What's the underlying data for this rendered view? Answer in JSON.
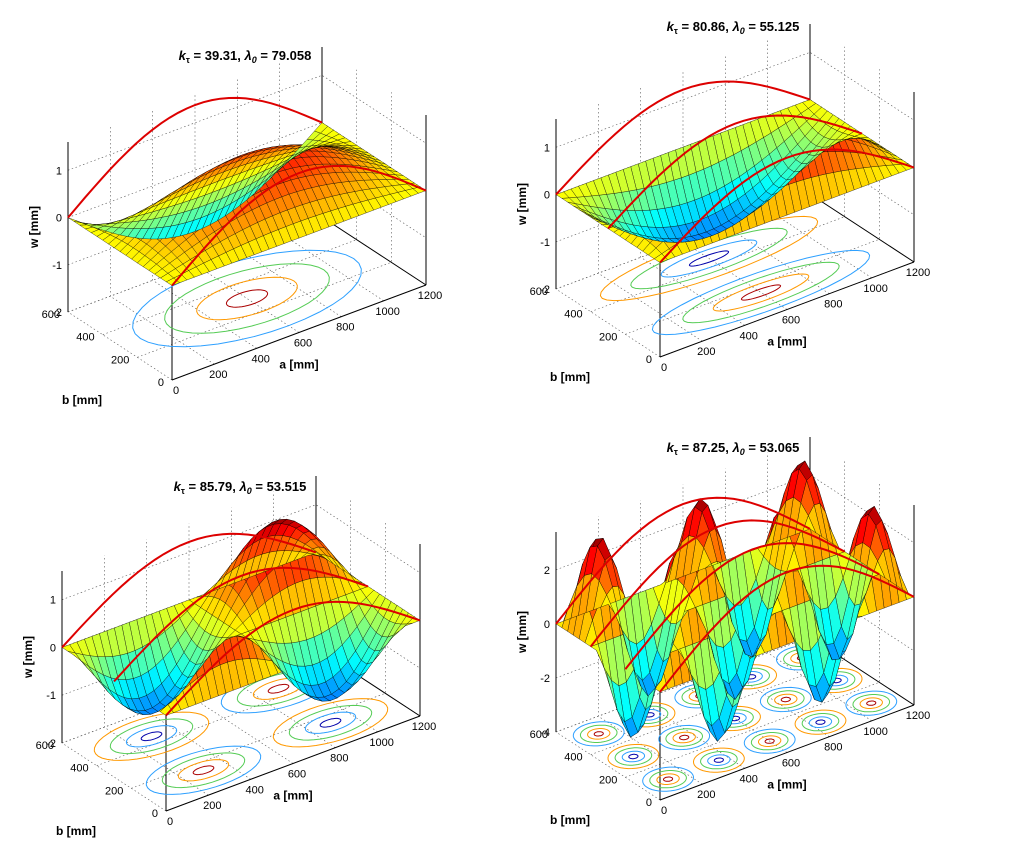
{
  "chart_data": [
    {
      "type": "surface3d",
      "title": "kτ = 39.31, λ0 = 79.058",
      "title_parts": {
        "k": "k",
        "k_sub": "τ",
        "k_value": " = 39.31, ",
        "lambda": "λ",
        "lambda_sub": "0",
        "lambda_value": " = 79.058"
      },
      "xlabel": "a [mm]",
      "ylabel": "b [mm]",
      "zlabel": "w [mm]",
      "xlim": [
        0,
        1200
      ],
      "ylim": [
        0,
        600
      ],
      "zlim": [
        -2,
        1.6
      ],
      "xticks": [
        "0",
        "200",
        "400",
        "600",
        "800",
        "1000",
        "1200"
      ],
      "yticks": [
        "0",
        "200",
        "400",
        "600"
      ],
      "zticks": [
        "-2",
        "-1",
        "0",
        "1"
      ],
      "grid": true,
      "mode": {
        "m": 1,
        "n": 1,
        "amplitude": 1.7,
        "tilt": -0.9
      },
      "colormap": "jet",
      "contour_colors": [
        "#0000aa",
        "#2ea0ff",
        "#55cc55",
        "#ff9900",
        "#aa0000"
      ]
    },
    {
      "type": "surface3d",
      "title": "kτ = 80.86, λ0 = 55.125",
      "title_parts": {
        "k": "k",
        "k_sub": "τ",
        "k_value": " = 80.86, ",
        "lambda": "λ",
        "lambda_sub": "0",
        "lambda_value": " = 55.125"
      },
      "xlabel": "a [mm]",
      "ylabel": "b [mm]",
      "zlabel": "w [mm]",
      "xlim": [
        0,
        1200
      ],
      "ylim": [
        0,
        600
      ],
      "zlim": [
        -2,
        1.6
      ],
      "xticks": [
        "0",
        "200",
        "400",
        "600",
        "800",
        "1000",
        "1200"
      ],
      "yticks": [
        "0",
        "200",
        "400",
        "600"
      ],
      "zticks": [
        "-2",
        "-1",
        "0",
        "1"
      ],
      "grid": true,
      "mode": {
        "m": 1,
        "n": 2,
        "amplitude": 1.5,
        "tilt": 0
      },
      "colormap": "jet",
      "contour_colors": [
        "#0000aa",
        "#2ea0ff",
        "#55cc55",
        "#ff9900",
        "#aa0000"
      ]
    },
    {
      "type": "surface3d",
      "title": "kτ = 85.79, λ0 = 53.515",
      "title_parts": {
        "k": "k",
        "k_sub": "τ",
        "k_value": " = 85.79, ",
        "lambda": "λ",
        "lambda_sub": "0",
        "lambda_value": " = 53.515"
      },
      "xlabel": "a [mm]",
      "ylabel": "b [mm]",
      "zlabel": "w [mm]",
      "xlim": [
        0,
        1200
      ],
      "ylim": [
        0,
        600
      ],
      "zlim": [
        -2,
        1.6
      ],
      "xticks": [
        "0",
        "200",
        "400",
        "600",
        "800",
        "1000",
        "1200"
      ],
      "yticks": [
        "0",
        "200",
        "400",
        "600"
      ],
      "zticks": [
        "-2",
        "-1",
        "0",
        "1"
      ],
      "grid": true,
      "mode": {
        "m": 2,
        "n": 2,
        "amplitude": 1.5,
        "tilt": 0
      },
      "colormap": "jet",
      "contour_colors": [
        "#0000aa",
        "#2ea0ff",
        "#55cc55",
        "#ff9900",
        "#aa0000"
      ]
    },
    {
      "type": "surface3d",
      "title": "kτ = 87.25, λ0 = 53.065",
      "title_parts": {
        "k": "k",
        "k_sub": "τ",
        "k_value": " = 87.25, ",
        "lambda": "λ",
        "lambda_sub": "0",
        "lambda_value": " = 53.065"
      },
      "xlabel": "a [mm]",
      "ylabel": "b [mm]",
      "zlabel": "w [mm]",
      "xlim": [
        0,
        1200
      ],
      "ylim": [
        0,
        600
      ],
      "zlim": [
        -4,
        3.4
      ],
      "xticks": [
        "0",
        "200",
        "400",
        "600",
        "800",
        "1000",
        "1200"
      ],
      "yticks": [
        "0",
        "200",
        "400",
        "600"
      ],
      "zticks": [
        "-4",
        "-2",
        "0",
        "2"
      ],
      "grid": true,
      "mode": {
        "m": 5,
        "n": 3,
        "amplitude": 3.3,
        "tilt": 0
      },
      "colormap": "jet",
      "contour_colors": [
        "#0000aa",
        "#2ea0ff",
        "#55cc55",
        "#ff9900",
        "#aa0000"
      ]
    }
  ],
  "colors": {
    "boundary_lines": "#dd0000",
    "background": "#ffffff"
  }
}
